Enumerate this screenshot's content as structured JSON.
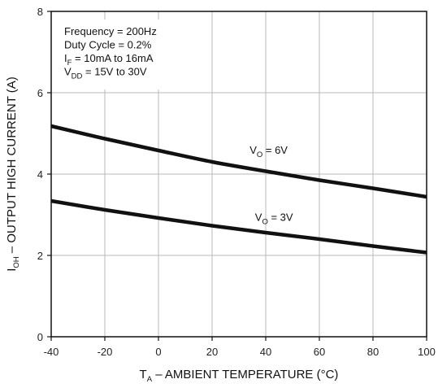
{
  "chart_data": {
    "type": "line",
    "xlim": [
      -40,
      100
    ],
    "ylim": [
      0,
      8
    ],
    "x_ticks": [
      -40,
      -20,
      0,
      20,
      40,
      60,
      80,
      100
    ],
    "y_ticks": [
      0,
      2,
      4,
      6,
      8
    ],
    "x_tick_labels": [
      "-40",
      "-20",
      "0",
      "20",
      "40",
      "60",
      "80",
      "100"
    ],
    "y_tick_labels": [
      "0",
      "2",
      "4",
      "6",
      "8"
    ],
    "grid": true,
    "xlabel": {
      "main": "T",
      "sub": "A",
      "rest": " – AMBIENT TEMPERATURE (°C)"
    },
    "ylabel": {
      "main": "I",
      "sub": "OH",
      "rest": " – OUTPUT HIGH CURRENT (A)"
    },
    "conditions": [
      {
        "main": "Frequency = 200Hz",
        "sub": "",
        "rest": ""
      },
      {
        "main": "Duty Cycle = 0.2%",
        "sub": "",
        "rest": ""
      },
      {
        "main": "I",
        "sub": "F",
        "rest": " = 10mA to 16mA"
      },
      {
        "main": "V",
        "sub": "DD",
        "rest": " = 15V to 30V"
      }
    ],
    "series": [
      {
        "label": {
          "main": "V",
          "sub": "O",
          "rest": " = 6V"
        },
        "label_at": [
          34,
          4.5
        ],
        "x": [
          -40,
          -20,
          0,
          20,
          40,
          60,
          80,
          100
        ],
        "y": [
          5.18,
          4.87,
          4.58,
          4.3,
          4.07,
          3.85,
          3.65,
          3.44
        ]
      },
      {
        "label": {
          "main": "V",
          "sub": "O",
          "rest": " = 3V"
        },
        "label_at": [
          36,
          2.85
        ],
        "x": [
          -40,
          -20,
          0,
          20,
          40,
          60,
          80,
          100
        ],
        "y": [
          3.34,
          3.12,
          2.92,
          2.73,
          2.56,
          2.4,
          2.23,
          2.07
        ]
      }
    ]
  }
}
